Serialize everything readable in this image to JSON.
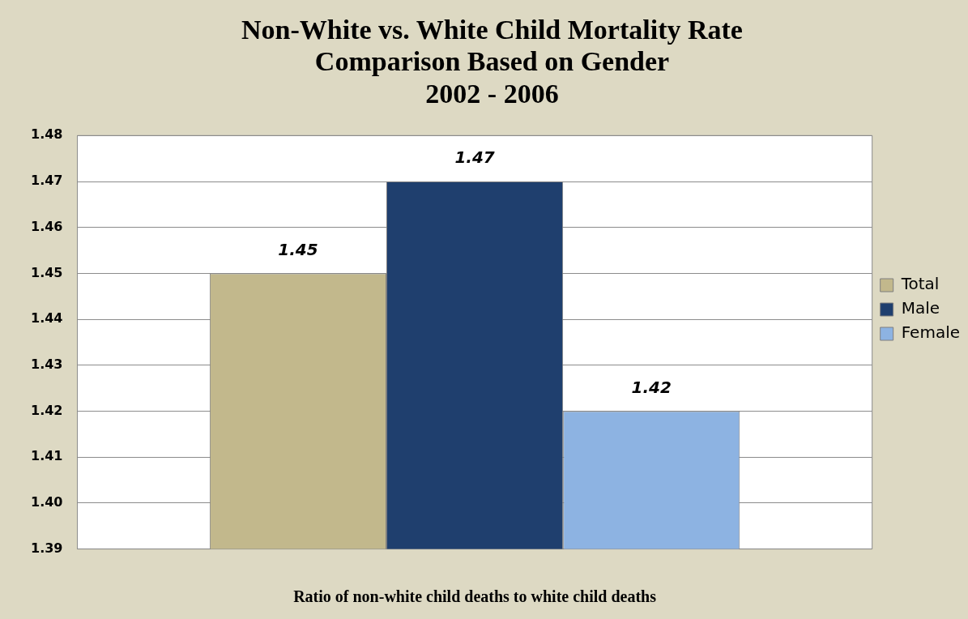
{
  "chart_data": {
    "type": "bar",
    "title": "Non-White vs. White Child Mortality Rate\nComparison Based on Gender\n2002 - 2006",
    "xlabel": "Ratio of non-white child deaths to white child deaths",
    "categories": [
      null
    ],
    "series": [
      {
        "name": "Total",
        "color": "#c2b88c",
        "values": [
          1.45
        ]
      },
      {
        "name": "Male",
        "color": "#1f3f6e",
        "values": [
          1.47
        ]
      },
      {
        "name": "Female",
        "color": "#8db3e2",
        "values": [
          1.42
        ]
      }
    ],
    "ylim": [
      1.39,
      1.48
    ],
    "yticks": [
      {
        "value": 1.39,
        "label": "1.39"
      },
      {
        "value": 1.4,
        "label": "1.40"
      },
      {
        "value": 1.41,
        "label": "1.41"
      },
      {
        "value": 1.42,
        "label": "1.42"
      },
      {
        "value": 1.43,
        "label": "1.43"
      },
      {
        "value": 1.44,
        "label": "1.44"
      },
      {
        "value": 1.45,
        "label": "1.45"
      },
      {
        "value": 1.46,
        "label": "1.46"
      },
      {
        "value": 1.47,
        "label": "1.47"
      },
      {
        "value": 1.48,
        "label": "1.48"
      }
    ],
    "grid": "y",
    "legend": "right",
    "data_labels": true
  }
}
